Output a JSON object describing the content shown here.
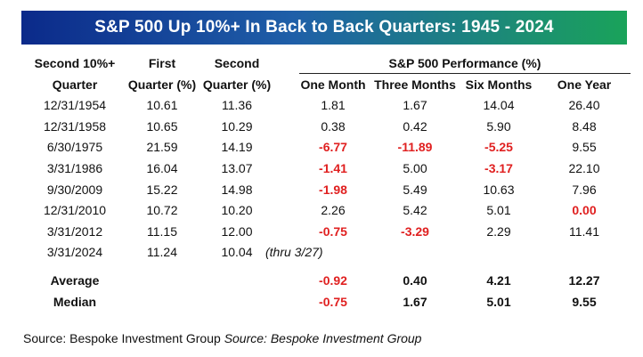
{
  "title": "S&P 500 Up 10%+ In Back to Back Quarters: 1945 - 2024",
  "source": {
    "text": "Source: Bespoke Investment Group",
    "italic": "Source: Bespoke Investment Group"
  },
  "colors": {
    "negative": "#e02020",
    "title_start": "#0b2a8a",
    "title_end": "#1aa35a"
  },
  "chart_data": {
    "type": "table",
    "title": "S&P 500 Up 10%+ In Back to Back Quarters: 1945 - 2024",
    "group_header": "S&P 500 Performance (%)",
    "columns": [
      [
        "Second 10%+",
        "Quarter"
      ],
      [
        "First",
        "Quarter (%)"
      ],
      [
        "Second",
        "Quarter (%)"
      ],
      [
        "",
        "One Month"
      ],
      [
        "",
        "Three Months"
      ],
      [
        "",
        "Six Months"
      ],
      [
        "",
        "One Year"
      ]
    ],
    "rows": [
      [
        "12/31/1954",
        "10.61",
        "11.36",
        "1.81",
        "1.67",
        "14.04",
        "26.40"
      ],
      [
        "12/31/1958",
        "10.65",
        "10.29",
        "0.38",
        "0.42",
        "5.90",
        "8.48"
      ],
      [
        "6/30/1975",
        "21.59",
        "14.19",
        "-6.77",
        "-11.89",
        "-5.25",
        "9.55"
      ],
      [
        "3/31/1986",
        "16.04",
        "13.07",
        "-1.41",
        "5.00",
        "-3.17",
        "22.10"
      ],
      [
        "9/30/2009",
        "15.22",
        "14.98",
        "-1.98",
        "5.49",
        "10.63",
        "7.96"
      ],
      [
        "12/31/2010",
        "10.72",
        "10.20",
        "2.26",
        "5.42",
        "5.01",
        "0.00"
      ],
      [
        "3/31/2012",
        "11.15",
        "12.00",
        "-0.75",
        "-3.29",
        "2.29",
        "11.41"
      ],
      [
        "3/31/2024",
        "11.24",
        "10.04",
        "",
        "",
        "",
        ""
      ]
    ],
    "row_note": {
      "row": 7,
      "text": "(thru 3/27)"
    },
    "summary": [
      [
        "Average",
        "",
        "",
        "-0.92",
        "0.40",
        "4.21",
        "12.27"
      ],
      [
        "Median",
        "",
        "",
        "-0.75",
        "1.67",
        "5.01",
        "9.55"
      ]
    ],
    "highlighted_red": [
      [
        5,
        6
      ]
    ]
  }
}
